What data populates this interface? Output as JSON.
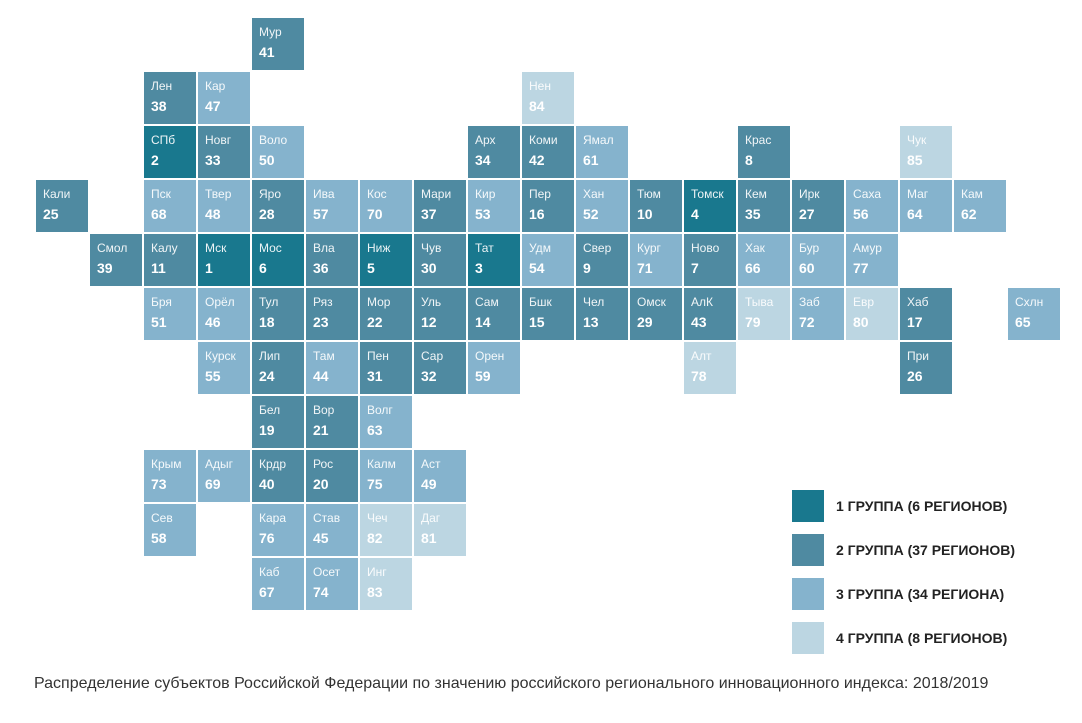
{
  "colors": {
    "g1": "#19788e",
    "g2": "#4f8aa1",
    "g3": "#85b3cd",
    "g4": "#bcd6e2"
  },
  "legend": [
    {
      "group": "g1",
      "label": "1 ГРУППА (6 РЕГИОНОВ)"
    },
    {
      "group": "g2",
      "label": "2 ГРУППА (37 РЕГИОНОВ)"
    },
    {
      "group": "g3",
      "label": "3 ГРУППА (34 РЕГИОНА)"
    },
    {
      "group": "g4",
      "label": "4 ГРУППА (8 РЕГИОНОВ)"
    }
  ],
  "regions": [
    {
      "r": 0,
      "c": 4,
      "abbr": "Мур",
      "rank": "41",
      "group": "g2"
    },
    {
      "r": 1,
      "c": 2,
      "abbr": "Лен",
      "rank": "38",
      "group": "g2"
    },
    {
      "r": 1,
      "c": 3,
      "abbr": "Кар",
      "rank": "47",
      "group": "g3"
    },
    {
      "r": 1,
      "c": 9,
      "abbr": "Нен",
      "rank": "84",
      "group": "g4"
    },
    {
      "r": 2,
      "c": 2,
      "abbr": "СПб",
      "rank": "2",
      "group": "g1"
    },
    {
      "r": 2,
      "c": 3,
      "abbr": "Новг",
      "rank": "33",
      "group": "g2"
    },
    {
      "r": 2,
      "c": 4,
      "abbr": "Воло",
      "rank": "50",
      "group": "g3"
    },
    {
      "r": 2,
      "c": 8,
      "abbr": "Арх",
      "rank": "34",
      "group": "g2"
    },
    {
      "r": 2,
      "c": 9,
      "abbr": "Коми",
      "rank": "42",
      "group": "g2"
    },
    {
      "r": 2,
      "c": 10,
      "abbr": "Ямал",
      "rank": "61",
      "group": "g3"
    },
    {
      "r": 2,
      "c": 13,
      "abbr": "Крас",
      "rank": "8",
      "group": "g2"
    },
    {
      "r": 2,
      "c": 16,
      "abbr": "Чук",
      "rank": "85",
      "group": "g4"
    },
    {
      "r": 3,
      "c": 0,
      "abbr": "Кали",
      "rank": "25",
      "group": "g2"
    },
    {
      "r": 3,
      "c": 2,
      "abbr": "Пск",
      "rank": "68",
      "group": "g3"
    },
    {
      "r": 3,
      "c": 3,
      "abbr": "Твер",
      "rank": "48",
      "group": "g3"
    },
    {
      "r": 3,
      "c": 4,
      "abbr": "Яро",
      "rank": "28",
      "group": "g2"
    },
    {
      "r": 3,
      "c": 5,
      "abbr": "Ива",
      "rank": "57",
      "group": "g3"
    },
    {
      "r": 3,
      "c": 6,
      "abbr": "Кос",
      "rank": "70",
      "group": "g3"
    },
    {
      "r": 3,
      "c": 7,
      "abbr": "Мари",
      "rank": "37",
      "group": "g2"
    },
    {
      "r": 3,
      "c": 8,
      "abbr": "Кир",
      "rank": "53",
      "group": "g3"
    },
    {
      "r": 3,
      "c": 9,
      "abbr": "Пер",
      "rank": "16",
      "group": "g2"
    },
    {
      "r": 3,
      "c": 10,
      "abbr": "Хан",
      "rank": "52",
      "group": "g3"
    },
    {
      "r": 3,
      "c": 11,
      "abbr": "Тюм",
      "rank": "10",
      "group": "g2"
    },
    {
      "r": 3,
      "c": 12,
      "abbr": "Томск",
      "rank": "4",
      "group": "g1"
    },
    {
      "r": 3,
      "c": 13,
      "abbr": "Кем",
      "rank": "35",
      "group": "g2"
    },
    {
      "r": 3,
      "c": 14,
      "abbr": "Ирк",
      "rank": "27",
      "group": "g2"
    },
    {
      "r": 3,
      "c": 15,
      "abbr": "Саха",
      "rank": "56",
      "group": "g3"
    },
    {
      "r": 3,
      "c": 16,
      "abbr": "Маг",
      "rank": "64",
      "group": "g3"
    },
    {
      "r": 3,
      "c": 17,
      "abbr": "Кам",
      "rank": "62",
      "group": "g3"
    },
    {
      "r": 4,
      "c": 1,
      "abbr": "Смол",
      "rank": "39",
      "group": "g2"
    },
    {
      "r": 4,
      "c": 2,
      "abbr": "Калу",
      "rank": "11",
      "group": "g2"
    },
    {
      "r": 4,
      "c": 3,
      "abbr": "Мск",
      "rank": "1",
      "group": "g1"
    },
    {
      "r": 4,
      "c": 4,
      "abbr": "Мос",
      "rank": "6",
      "group": "g1"
    },
    {
      "r": 4,
      "c": 5,
      "abbr": "Вла",
      "rank": "36",
      "group": "g2"
    },
    {
      "r": 4,
      "c": 6,
      "abbr": "Ниж",
      "rank": "5",
      "group": "g1"
    },
    {
      "r": 4,
      "c": 7,
      "abbr": "Чув",
      "rank": "30",
      "group": "g2"
    },
    {
      "r": 4,
      "c": 8,
      "abbr": "Тат",
      "rank": "3",
      "group": "g1"
    },
    {
      "r": 4,
      "c": 9,
      "abbr": "Удм",
      "rank": "54",
      "group": "g3"
    },
    {
      "r": 4,
      "c": 10,
      "abbr": "Свер",
      "rank": "9",
      "group": "g2"
    },
    {
      "r": 4,
      "c": 11,
      "abbr": "Кург",
      "rank": "71",
      "group": "g3"
    },
    {
      "r": 4,
      "c": 12,
      "abbr": "Ново",
      "rank": "7",
      "group": "g2"
    },
    {
      "r": 4,
      "c": 13,
      "abbr": "Хак",
      "rank": "66",
      "group": "g3"
    },
    {
      "r": 4,
      "c": 14,
      "abbr": "Бур",
      "rank": "60",
      "group": "g3"
    },
    {
      "r": 4,
      "c": 15,
      "abbr": "Амур",
      "rank": "77",
      "group": "g3"
    },
    {
      "r": 5,
      "c": 2,
      "abbr": "Бря",
      "rank": "51",
      "group": "g3"
    },
    {
      "r": 5,
      "c": 3,
      "abbr": "Орёл",
      "rank": "46",
      "group": "g3"
    },
    {
      "r": 5,
      "c": 4,
      "abbr": "Тул",
      "rank": "18",
      "group": "g2"
    },
    {
      "r": 5,
      "c": 5,
      "abbr": "Ряз",
      "rank": "23",
      "group": "g2"
    },
    {
      "r": 5,
      "c": 6,
      "abbr": "Мор",
      "rank": "22",
      "group": "g2"
    },
    {
      "r": 5,
      "c": 7,
      "abbr": "Уль",
      "rank": "12",
      "group": "g2"
    },
    {
      "r": 5,
      "c": 8,
      "abbr": "Сам",
      "rank": "14",
      "group": "g2"
    },
    {
      "r": 5,
      "c": 9,
      "abbr": "Бшк",
      "rank": "15",
      "group": "g2"
    },
    {
      "r": 5,
      "c": 10,
      "abbr": "Чел",
      "rank": "13",
      "group": "g2"
    },
    {
      "r": 5,
      "c": 11,
      "abbr": "Омск",
      "rank": "29",
      "group": "g2"
    },
    {
      "r": 5,
      "c": 12,
      "abbr": "АлК",
      "rank": "43",
      "group": "g2"
    },
    {
      "r": 5,
      "c": 13,
      "abbr": "Тыва",
      "rank": "79",
      "group": "g4"
    },
    {
      "r": 5,
      "c": 14,
      "abbr": "Заб",
      "rank": "72",
      "group": "g3"
    },
    {
      "r": 5,
      "c": 15,
      "abbr": "Евр",
      "rank": "80",
      "group": "g4"
    },
    {
      "r": 5,
      "c": 16,
      "abbr": "Хаб",
      "rank": "17",
      "group": "g2"
    },
    {
      "r": 5,
      "c": 18,
      "abbr": "Схлн",
      "rank": "65",
      "group": "g3"
    },
    {
      "r": 6,
      "c": 3,
      "abbr": "Курск",
      "rank": "55",
      "group": "g3"
    },
    {
      "r": 6,
      "c": 4,
      "abbr": "Лип",
      "rank": "24",
      "group": "g2"
    },
    {
      "r": 6,
      "c": 5,
      "abbr": "Там",
      "rank": "44",
      "group": "g3"
    },
    {
      "r": 6,
      "c": 6,
      "abbr": "Пен",
      "rank": "31",
      "group": "g2"
    },
    {
      "r": 6,
      "c": 7,
      "abbr": "Сар",
      "rank": "32",
      "group": "g2"
    },
    {
      "r": 6,
      "c": 8,
      "abbr": "Орен",
      "rank": "59",
      "group": "g3"
    },
    {
      "r": 6,
      "c": 12,
      "abbr": "Алт",
      "rank": "78",
      "group": "g4"
    },
    {
      "r": 6,
      "c": 16,
      "abbr": "При",
      "rank": "26",
      "group": "g2"
    },
    {
      "r": 7,
      "c": 4,
      "abbr": "Бел",
      "rank": "19",
      "group": "g2"
    },
    {
      "r": 7,
      "c": 5,
      "abbr": "Вор",
      "rank": "21",
      "group": "g2"
    },
    {
      "r": 7,
      "c": 6,
      "abbr": "Волг",
      "rank": "63",
      "group": "g3"
    },
    {
      "r": 8,
      "c": 2,
      "abbr": "Крым",
      "rank": "73",
      "group": "g3"
    },
    {
      "r": 8,
      "c": 3,
      "abbr": "Адыг",
      "rank": "69",
      "group": "g3"
    },
    {
      "r": 8,
      "c": 4,
      "abbr": "Крдр",
      "rank": "40",
      "group": "g2"
    },
    {
      "r": 8,
      "c": 5,
      "abbr": "Рос",
      "rank": "20",
      "group": "g2"
    },
    {
      "r": 8,
      "c": 6,
      "abbr": "Калм",
      "rank": "75",
      "group": "g3"
    },
    {
      "r": 8,
      "c": 7,
      "abbr": "Аст",
      "rank": "49",
      "group": "g3"
    },
    {
      "r": 9,
      "c": 2,
      "abbr": "Сев",
      "rank": "58",
      "group": "g3"
    },
    {
      "r": 9,
      "c": 4,
      "abbr": "Кара",
      "rank": "76",
      "group": "g3"
    },
    {
      "r": 9,
      "c": 5,
      "abbr": "Став",
      "rank": "45",
      "group": "g3"
    },
    {
      "r": 9,
      "c": 6,
      "abbr": "Чеч",
      "rank": "82",
      "group": "g4"
    },
    {
      "r": 9,
      "c": 7,
      "abbr": "Даг",
      "rank": "81",
      "group": "g4"
    },
    {
      "r": 10,
      "c": 4,
      "abbr": "Каб",
      "rank": "67",
      "group": "g3"
    },
    {
      "r": 10,
      "c": 5,
      "abbr": "Осет",
      "rank": "74",
      "group": "g3"
    },
    {
      "r": 10,
      "c": 6,
      "abbr": "Инг",
      "rank": "83",
      "group": "g4"
    }
  ],
  "caption": "Распределение субъектов Российской Федерации по значению российского регионального инновационного индекса: 2018/2019"
}
